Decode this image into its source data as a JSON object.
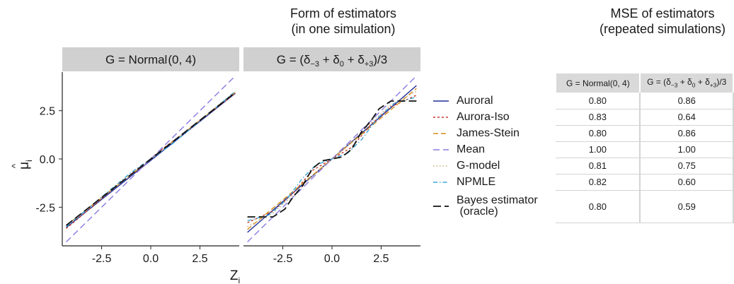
{
  "titles": {
    "middle": [
      "Form of estimators",
      "(in one simulation)"
    ],
    "right": [
      "MSE of estimators",
      "(repeated simulations)"
    ]
  },
  "colors": {
    "Auroral": "#1f2f99",
    "Aurora-Iso": "#c0392b",
    "James-Stein": "#d4901c",
    "Mean": "#8a7ae0",
    "G-model": "#c6a97a",
    "NPMLE": "#3ba6d8",
    "Bayes": "#111111",
    "identity": "#111111",
    "strip": "#d0d0d0"
  },
  "chart_data": [
    {
      "type": "line",
      "panel": "G = Normal(0, 4)",
      "xlabel": "Z_i",
      "ylabel": "μ̂_i",
      "xlim": [
        -4.5,
        4.5
      ],
      "ylim": [
        -4.5,
        4.5
      ],
      "x_ticks": [
        "-2.5",
        "0.0",
        "2.5"
      ],
      "y_ticks": [
        "2.5",
        "0.0",
        "-2.5"
      ],
      "series": [
        {
          "name": "Auroral",
          "x": [
            -4.3,
            4.3
          ],
          "y": [
            -3.55,
            3.4
          ]
        },
        {
          "name": "Aurora-Iso",
          "x": [
            -4.3,
            -1.5,
            -0.5,
            0.5,
            1.5,
            4.3
          ],
          "y": [
            -3.6,
            -1.2,
            -0.45,
            0.45,
            1.2,
            3.4
          ]
        },
        {
          "name": "James-Stein",
          "x": [
            -4.3,
            4.3
          ],
          "y": [
            -3.45,
            3.45
          ]
        },
        {
          "name": "Mean",
          "x": [
            -4.3,
            4.3
          ],
          "y": [
            -4.3,
            4.3
          ]
        },
        {
          "name": "G-model",
          "x": [
            -4.3,
            -2,
            0,
            2,
            4.3
          ],
          "y": [
            -3.5,
            -1.6,
            0,
            1.6,
            3.5
          ]
        },
        {
          "name": "NPMLE",
          "x": [
            -4.3,
            -2,
            -1,
            0,
            1,
            2,
            4.3
          ],
          "y": [
            -3.5,
            -1.55,
            -0.7,
            0,
            0.7,
            1.55,
            3.5
          ]
        },
        {
          "name": "Bayes estimator (oracle)",
          "x": [
            -4.3,
            4.3
          ],
          "y": [
            -3.44,
            3.44
          ]
        }
      ]
    },
    {
      "type": "line",
      "panel": "G = (δ₋₃ + δ₀ + δ₊₃)/3",
      "xlabel": "Z_i",
      "ylabel": "μ̂_i",
      "xlim": [
        -4.5,
        4.5
      ],
      "ylim": [
        -4.5,
        4.5
      ],
      "x_ticks": [
        "-2.5",
        "0.0",
        "2.5"
      ],
      "series": [
        {
          "name": "Auroral",
          "x": [
            -4.3,
            4.3
          ],
          "y": [
            -3.8,
            3.8
          ]
        },
        {
          "name": "Aurora-Iso",
          "x": [
            -4.3,
            -3,
            -2,
            -1,
            0,
            1,
            2,
            3,
            4.3
          ],
          "y": [
            -3.3,
            -2.7,
            -1.8,
            -0.6,
            0,
            0.6,
            1.8,
            2.7,
            3.3
          ]
        },
        {
          "name": "James-Stein",
          "x": [
            -4.3,
            4.3
          ],
          "y": [
            -3.65,
            3.65
          ]
        },
        {
          "name": "Mean",
          "x": [
            -4.3,
            4.3
          ],
          "y": [
            -4.3,
            4.3
          ]
        },
        {
          "name": "G-model",
          "x": [
            -4.3,
            -3,
            -2,
            -1,
            0,
            1,
            2,
            3,
            4.3
          ],
          "y": [
            -3.5,
            -2.8,
            -1.9,
            -0.9,
            0,
            0.9,
            1.9,
            2.8,
            3.5
          ]
        },
        {
          "name": "NPMLE",
          "x": [
            -4.3,
            -3.2,
            -2.3,
            -1.5,
            -0.8,
            0,
            0.8,
            1.5,
            2.3,
            3.2,
            4.3
          ],
          "y": [
            -3.2,
            -2.9,
            -2.1,
            -1.0,
            -0.3,
            0,
            0.3,
            1.0,
            2.1,
            2.9,
            3.2
          ]
        },
        {
          "name": "Bayes estimator (oracle)",
          "x": [
            -4.3,
            -3.0,
            -2.4,
            -2.0,
            -1.5,
            -1.0,
            -0.5,
            0,
            0.5,
            1.0,
            1.5,
            2.0,
            2.4,
            3.0,
            4.3
          ],
          "y": [
            -3.0,
            -3.0,
            -2.6,
            -2.0,
            -1.4,
            -0.5,
            -0.1,
            0,
            0.1,
            0.5,
            1.4,
            2.0,
            2.6,
            3.0,
            3.0
          ]
        }
      ]
    },
    {
      "type": "table",
      "columns": [
        {
          "main": "G = Normal",
          "tail": "(0, 4)"
        },
        {
          "main": "G = (δ",
          "sub1": "−3",
          "mid1": " + δ",
          "sub2": "0",
          "mid2": " + δ",
          "sub3": "+3",
          "tail": ")/3"
        }
      ],
      "rows": [
        {
          "label": "Auroral",
          "key": "Auroral",
          "values": [
            "0.80",
            "0.86"
          ]
        },
        {
          "label": "Aurora-Iso",
          "key": "Aurora-Iso",
          "values": [
            "0.83",
            "0.64"
          ]
        },
        {
          "label": "James-Stein",
          "key": "James-Stein",
          "values": [
            "0.80",
            "0.86"
          ]
        },
        {
          "label": "Mean",
          "key": "Mean",
          "values": [
            "1.00",
            "1.00"
          ]
        },
        {
          "label": "G-model",
          "key": "G-model",
          "values": [
            "0.81",
            "0.75"
          ]
        },
        {
          "label": "NPMLE",
          "key": "NPMLE",
          "values": [
            "0.82",
            "0.60"
          ]
        },
        {
          "label": "Bayes estimator",
          "label2": " (oracle)",
          "key": "Bayes",
          "values": [
            "0.80",
            "0.59"
          ]
        }
      ]
    }
  ],
  "panel_labels": {
    "left": "G = Normal",
    "left_tail": "(0, 4)",
    "right_pre": "G = (δ",
    "s1": "−3",
    "m1": " + δ",
    "s2": "0",
    "m2": " + δ",
    "s3": "+3",
    "right_tail": ")/3"
  },
  "axis": {
    "xlabel_main": "Z",
    "xlabel_sub": "i",
    "ylabel_main": "μ",
    "ylabel_sub": "i",
    "ylabel_hat": "^"
  }
}
